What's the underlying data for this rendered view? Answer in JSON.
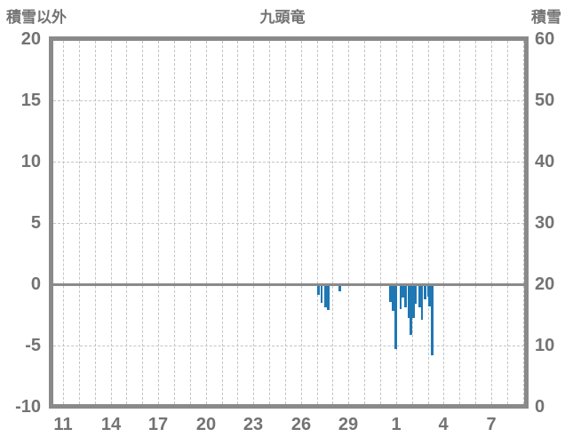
{
  "header": {
    "left_axis_title": "積雪以外",
    "station_title": "九頭竜",
    "right_axis_title": "積雪"
  },
  "colors": {
    "bar": "#1f77b4",
    "frame": "#8a8a8a",
    "grid": "#c4c4c4",
    "text": "#737373",
    "background": "#ffffff"
  },
  "chart_data": {
    "type": "bar",
    "title": "九頭竜",
    "left_axis": {
      "label": "積雪以外",
      "ticks": [
        20,
        15,
        10,
        5,
        0,
        -5,
        -10
      ],
      "range": [
        -10,
        20
      ]
    },
    "right_axis": {
      "label": "積雪",
      "ticks": [
        60,
        50,
        40,
        30,
        20,
        10,
        0
      ],
      "range": [
        0,
        60
      ]
    },
    "x_axis": {
      "tick_labels": [
        "11",
        "14",
        "17",
        "20",
        "23",
        "26",
        "29",
        "1",
        "4",
        "7"
      ],
      "tick_days": [
        11,
        14,
        17,
        20,
        23,
        26,
        29,
        32,
        35,
        38
      ],
      "day_range": [
        10.38,
        40.08
      ],
      "gridline_day_start": 11,
      "gridline_day_end": 40,
      "note_days_over_31_are_next_month": true
    },
    "grid": {
      "h_dashed_values": [
        15,
        10,
        5,
        -5
      ],
      "zero_line_value": 0
    },
    "legend_position": "none",
    "bars": [
      {
        "d": 27.12,
        "v": -0.9
      },
      {
        "d": 27.3,
        "v": -1.5
      },
      {
        "d": 27.57,
        "v": -1.9
      },
      {
        "d": 27.73,
        "v": -2.1
      },
      {
        "d": 28.44,
        "v": -0.6
      },
      {
        "d": 31.65,
        "v": -1.45
      },
      {
        "d": 31.83,
        "v": -2.2
      },
      {
        "d": 32.0,
        "v": -5.3
      },
      {
        "d": 32.29,
        "v": -2.0
      },
      {
        "d": 32.45,
        "v": -1.1
      },
      {
        "d": 32.61,
        "v": -1.9
      },
      {
        "d": 32.79,
        "v": -2.75
      },
      {
        "d": 32.95,
        "v": -4.1
      },
      {
        "d": 33.11,
        "v": -2.75
      },
      {
        "d": 33.24,
        "v": -1.6
      },
      {
        "d": 33.49,
        "v": -1.9
      },
      {
        "d": 33.63,
        "v": -2.9
      },
      {
        "d": 33.85,
        "v": -1.2
      },
      {
        "d": 34.02,
        "v": -1.0
      },
      {
        "d": 34.13,
        "v": -1.8
      },
      {
        "d": 34.27,
        "v": -5.8
      }
    ]
  }
}
